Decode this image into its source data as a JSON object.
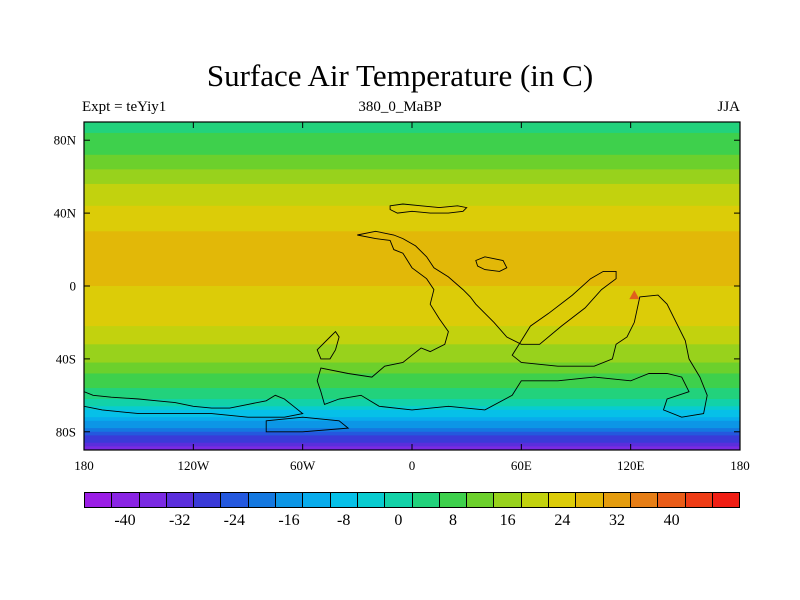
{
  "title": "Surface Air Temperature (in C)",
  "subtitle_left": "Expt = teYiy1",
  "subtitle_center": "380_0_MaBP",
  "subtitle_right": "JJA",
  "map": {
    "projection": "cylindrical equidistant",
    "lon_range": [
      -180,
      180
    ],
    "lat_range": [
      -90,
      90
    ],
    "x_ticks": [
      {
        "value": -180,
        "label": "180"
      },
      {
        "value": -120,
        "label": "120W"
      },
      {
        "value": -60,
        "label": "60W"
      },
      {
        "value": 0,
        "label": "0"
      },
      {
        "value": 60,
        "label": "60E"
      },
      {
        "value": 120,
        "label": "120E"
      },
      {
        "value": 180,
        "label": "180"
      }
    ],
    "y_ticks": [
      {
        "value": 80,
        "label": "80N"
      },
      {
        "value": 40,
        "label": "40N"
      },
      {
        "value": 0,
        "label": "0"
      },
      {
        "value": -40,
        "label": "40S"
      },
      {
        "value": -80,
        "label": "80S"
      }
    ],
    "field": "surface air temperature",
    "units": "C",
    "approx_zonal_profile": [
      {
        "lat": 90,
        "temp": 6
      },
      {
        "lat": 80,
        "temp": 9
      },
      {
        "lat": 70,
        "temp": 13
      },
      {
        "lat": 60,
        "temp": 18
      },
      {
        "lat": 50,
        "temp": 22
      },
      {
        "lat": 40,
        "temp": 25
      },
      {
        "lat": 30,
        "temp": 28
      },
      {
        "lat": 20,
        "temp": 29
      },
      {
        "lat": 10,
        "temp": 29
      },
      {
        "lat": 0,
        "temp": 28
      },
      {
        "lat": -10,
        "temp": 27
      },
      {
        "lat": -20,
        "temp": 25
      },
      {
        "lat": -30,
        "temp": 21
      },
      {
        "lat": -40,
        "temp": 17
      },
      {
        "lat": -50,
        "temp": 11
      },
      {
        "lat": -60,
        "temp": 5
      },
      {
        "lat": -65,
        "temp": 0
      },
      {
        "lat": -70,
        "temp": -6
      },
      {
        "lat": -80,
        "temp": -20
      },
      {
        "lat": -90,
        "temp": -34
      }
    ],
    "land_outlines": [
      [
        [
          -180,
          -58
        ],
        [
          -175,
          -60
        ],
        [
          -165,
          -61
        ],
        [
          -150,
          -62
        ],
        [
          -140,
          -63
        ],
        [
          -130,
          -64
        ],
        [
          -120,
          -66
        ],
        [
          -110,
          -67
        ],
        [
          -100,
          -67
        ],
        [
          -90,
          -65
        ],
        [
          -80,
          -63
        ],
        [
          -75,
          -60
        ],
        [
          -70,
          -62
        ],
        [
          -65,
          -66
        ],
        [
          -60,
          -70
        ],
        [
          -70,
          -72
        ],
        [
          -90,
          -72
        ],
        [
          -110,
          -70
        ],
        [
          -130,
          -70
        ],
        [
          -150,
          -70
        ],
        [
          -170,
          -68
        ],
        [
          -180,
          -66
        ]
      ],
      [
        [
          -80,
          -74
        ],
        [
          -60,
          -72
        ],
        [
          -40,
          -74
        ],
        [
          -35,
          -78
        ],
        [
          -60,
          -80
        ],
        [
          -80,
          -80
        ]
      ],
      [
        [
          -52,
          -35
        ],
        [
          -45,
          -28
        ],
        [
          -42,
          -25
        ],
        [
          -40,
          -28
        ],
        [
          -42,
          -35
        ],
        [
          -45,
          -40
        ],
        [
          -50,
          -40
        ]
      ],
      [
        [
          -30,
          28
        ],
        [
          -20,
          26
        ],
        [
          -12,
          25
        ],
        [
          -10,
          20
        ],
        [
          -5,
          18
        ],
        [
          0,
          10
        ],
        [
          8,
          4
        ],
        [
          12,
          -2
        ],
        [
          10,
          -10
        ],
        [
          15,
          -18
        ],
        [
          20,
          -25
        ],
        [
          18,
          -32
        ],
        [
          10,
          -36
        ],
        [
          5,
          -34
        ],
        [
          0,
          -38
        ],
        [
          -5,
          -42
        ],
        [
          -15,
          -44
        ],
        [
          -22,
          -50
        ],
        [
          -35,
          -48
        ],
        [
          -50,
          -45
        ],
        [
          -52,
          -52
        ],
        [
          -50,
          -58
        ],
        [
          -48,
          -65
        ],
        [
          -40,
          -62
        ],
        [
          -28,
          -60
        ],
        [
          -18,
          -66
        ],
        [
          0,
          -68
        ],
        [
          20,
          -66
        ],
        [
          40,
          -68
        ],
        [
          55,
          -60
        ],
        [
          60,
          -52
        ],
        [
          80,
          -52
        ],
        [
          100,
          -50
        ],
        [
          120,
          -52
        ],
        [
          130,
          -48
        ],
        [
          140,
          -48
        ],
        [
          148,
          -50
        ],
        [
          152,
          -58
        ],
        [
          140,
          -62
        ],
        [
          138,
          -68
        ],
        [
          148,
          -72
        ],
        [
          160,
          -70
        ],
        [
          162,
          -60
        ],
        [
          158,
          -50
        ],
        [
          152,
          -40
        ],
        [
          150,
          -30
        ],
        [
          145,
          -20
        ],
        [
          140,
          -10
        ],
        [
          135,
          -5
        ],
        [
          125,
          -6
        ],
        [
          122,
          -20
        ],
        [
          118,
          -28
        ],
        [
          112,
          -32
        ],
        [
          110,
          -40
        ],
        [
          100,
          -44
        ],
        [
          80,
          -44
        ],
        [
          60,
          -42
        ],
        [
          55,
          -38
        ],
        [
          60,
          -30
        ],
        [
          65,
          -22
        ],
        [
          75,
          -15
        ],
        [
          88,
          -5
        ],
        [
          98,
          4
        ],
        [
          105,
          8
        ],
        [
          112,
          8
        ],
        [
          112,
          4
        ],
        [
          104,
          -2
        ],
        [
          95,
          -12
        ],
        [
          82,
          -22
        ],
        [
          70,
          -32
        ],
        [
          60,
          -32
        ],
        [
          52,
          -28
        ],
        [
          45,
          -20
        ],
        [
          40,
          -15
        ],
        [
          35,
          -10
        ],
        [
          32,
          -6
        ],
        [
          28,
          -2
        ],
        [
          20,
          5
        ],
        [
          12,
          10
        ],
        [
          8,
          16
        ],
        [
          2,
          22
        ],
        [
          -5,
          26
        ],
        [
          -10,
          28
        ],
        [
          -20,
          30
        ]
      ],
      [
        [
          -12,
          44
        ],
        [
          -5,
          45
        ],
        [
          5,
          44
        ],
        [
          15,
          43
        ],
        [
          25,
          44
        ],
        [
          30,
          43
        ],
        [
          28,
          41
        ],
        [
          20,
          40
        ],
        [
          10,
          40
        ],
        [
          0,
          41
        ],
        [
          -8,
          40
        ],
        [
          -12,
          42
        ]
      ],
      [
        [
          35,
          14
        ],
        [
          40,
          16
        ],
        [
          50,
          14
        ],
        [
          52,
          10
        ],
        [
          48,
          8
        ],
        [
          40,
          9
        ],
        [
          36,
          11
        ]
      ]
    ],
    "special_marker": {
      "lon": 122,
      "lat": -5,
      "shape": "triangle",
      "color": "#e0601c"
    }
  },
  "colorbar": {
    "colors": [
      "#9b1ee6",
      "#8a24e4",
      "#7a2ae2",
      "#5a2edc",
      "#3a3ad8",
      "#2458de",
      "#1478e0",
      "#0c96e6",
      "#08acec",
      "#06c0e8",
      "#08ccd0",
      "#12d2a8",
      "#22d27c",
      "#3ed04c",
      "#6cd02c",
      "#98d21c",
      "#c2d20e",
      "#dccc08",
      "#e2b808",
      "#e49c0e",
      "#e67e16",
      "#ea5c18",
      "#ee3c16",
      "#f01e14"
    ],
    "boundaries": [
      -44,
      -40,
      -36,
      -32,
      -28,
      -24,
      -20,
      -16,
      -12,
      -8,
      -4,
      0,
      4,
      8,
      12,
      16,
      20,
      24,
      28,
      32,
      36,
      40,
      44
    ],
    "labels": [
      "-40",
      "-32",
      "-24",
      "-16",
      "-8",
      "0",
      "8",
      "16",
      "24",
      "32",
      "40"
    ],
    "label_positions": [
      1.5,
      3.5,
      5.5,
      7.5,
      9.5,
      11.5,
      13.5,
      15.5,
      17.5,
      19.5,
      21.5
    ]
  }
}
